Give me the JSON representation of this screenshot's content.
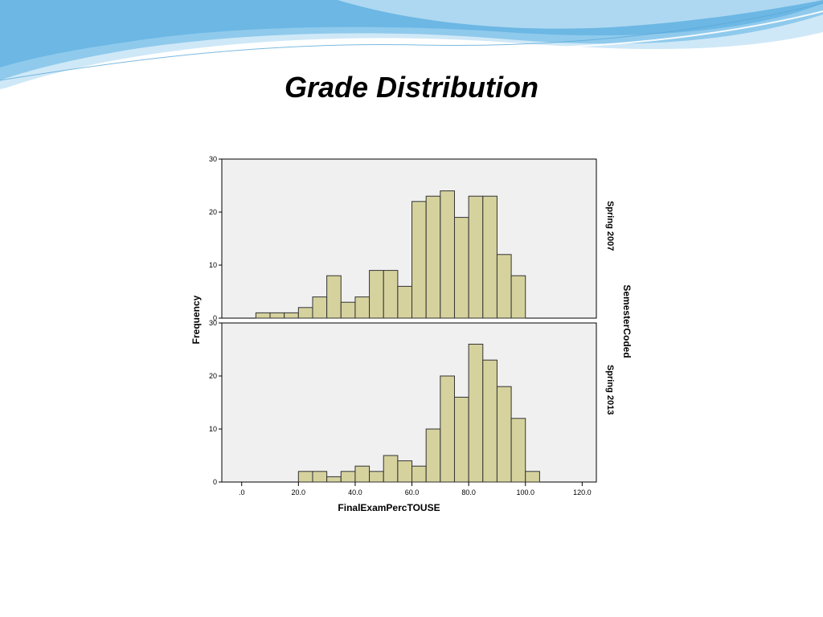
{
  "slide": {
    "title": "Grade Distribution"
  },
  "colors": {
    "bar_fill": "#d6d29e",
    "bar_stroke": "#333333",
    "panel_bg": "#f0f0f0",
    "wave_dark": "#6cb7e4",
    "wave_light": "#bfe0f4"
  },
  "chart_data": {
    "type": "bar",
    "subtype": "histogram-panel",
    "title": "",
    "xlabel": "FinalExamPercTOUSE",
    "ylabel": "Frequency",
    "panel_variable": "SemesterCoded",
    "xlim": [
      -7,
      125
    ],
    "ylim": [
      0,
      30
    ],
    "x_ticks": [
      0,
      20,
      40,
      60,
      80,
      100,
      120
    ],
    "x_tick_labels": [
      ".0",
      "20.0",
      "40.0",
      "60.0",
      "80.0",
      "100.0",
      "120.0"
    ],
    "y_ticks": [
      0,
      10,
      20,
      30
    ],
    "y_tick_labels": [
      "0",
      "10",
      "20",
      "30"
    ],
    "bin_width": 5,
    "bin_starts": [
      5,
      10,
      15,
      20,
      25,
      30,
      35,
      40,
      45,
      50,
      55,
      60,
      65,
      70,
      75,
      80,
      85,
      90,
      95,
      100
    ],
    "grid": false,
    "legend": "none",
    "panels": [
      {
        "name": "Spring 2007",
        "values": [
          1,
          1,
          1,
          2,
          4,
          8,
          3,
          4,
          9,
          9,
          6,
          22,
          23,
          24,
          19,
          23,
          23,
          12,
          8,
          0
        ]
      },
      {
        "name": "Spring 2013",
        "values": [
          0,
          0,
          0,
          2,
          2,
          1,
          2,
          3,
          2,
          5,
          4,
          3,
          10,
          20,
          16,
          26,
          23,
          18,
          12,
          2
        ]
      }
    ]
  }
}
